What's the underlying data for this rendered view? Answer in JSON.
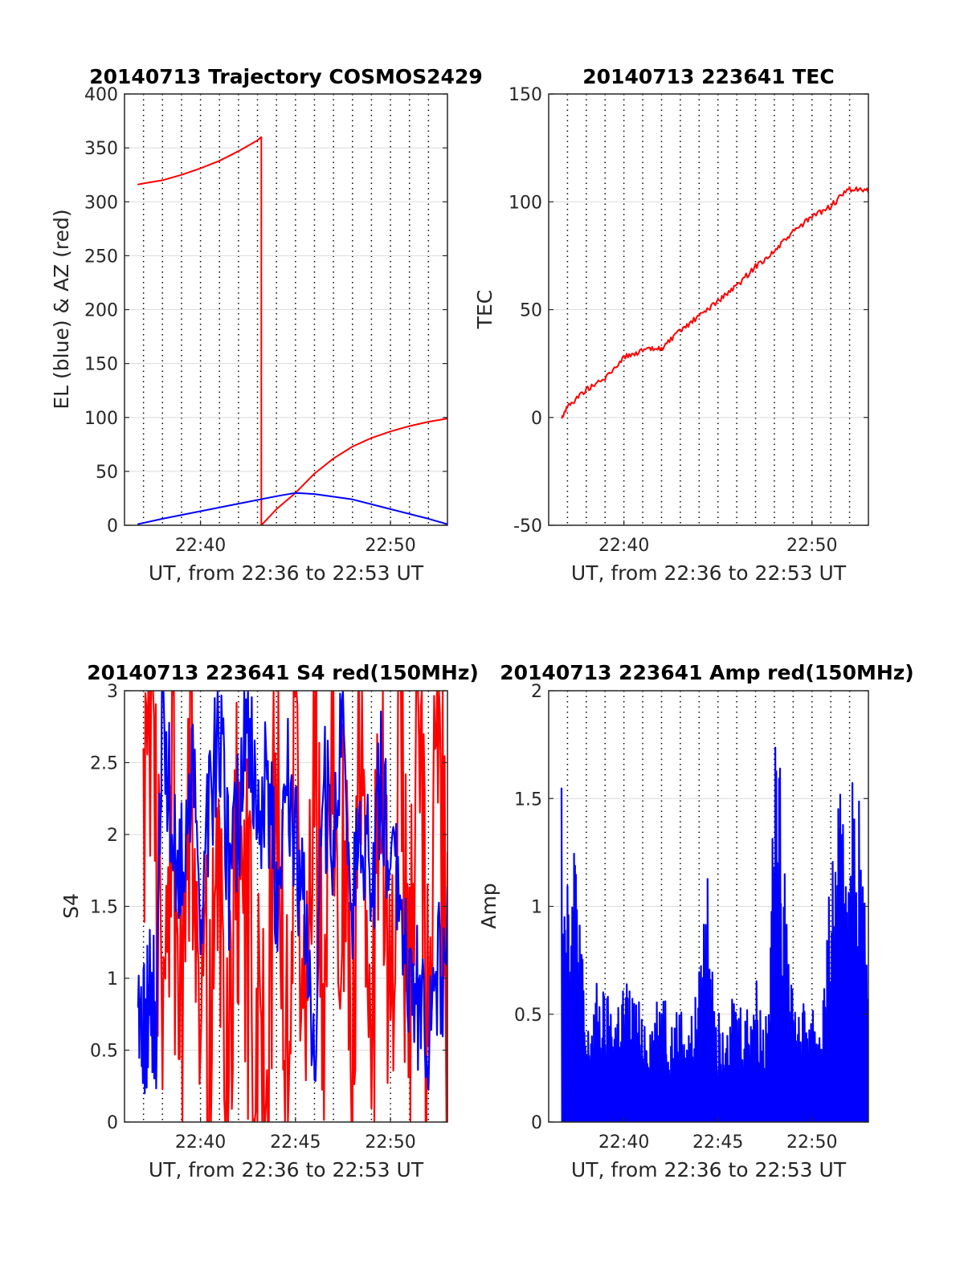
{
  "chart_data": [
    {
      "type": "line",
      "title": "20140713 Trajectory COSMOS2429",
      "xlabel": "UT, from 22:36 to 22:53 UT",
      "ylabel": "EL (blue) & AZ (red)",
      "xlim": [
        "22:36",
        "22:53"
      ],
      "ylim": [
        0,
        400
      ],
      "yticks": [
        0,
        50,
        100,
        150,
        200,
        250,
        300,
        350,
        400
      ],
      "xticks": [
        "22:40",
        "22:50"
      ],
      "grid": true,
      "series": [
        {
          "color": "#ff0000",
          "x": [
            "22:36:41",
            "22:37",
            "22:38",
            "22:39",
            "22:40",
            "22:41",
            "22:42",
            "22:43",
            "22:43:12",
            "22:43:12",
            "22:44",
            "22:45",
            "22:46",
            "22:47",
            "22:48",
            "22:49",
            "22:50",
            "22:51",
            "22:52",
            "22:53"
          ],
          "values": [
            316,
            317,
            320,
            325,
            331,
            338,
            347,
            357,
            360,
            0,
            15,
            30,
            48,
            62,
            73,
            81,
            87,
            92,
            96,
            99
          ]
        },
        {
          "color": "#0000ff",
          "x": [
            "22:36:41",
            "22:38",
            "22:40",
            "22:42",
            "22:44",
            "22:45",
            "22:46",
            "22:48",
            "22:50",
            "22:52",
            "22:53"
          ],
          "values": [
            1,
            6,
            13,
            20,
            27,
            30,
            29,
            24,
            15,
            6,
            1
          ]
        }
      ]
    },
    {
      "type": "line",
      "title": "20140713 223641 TEC",
      "xlabel": "UT, from 22:36 to 22:53 UT",
      "ylabel": "TEC",
      "xlim": [
        "22:36",
        "22:53"
      ],
      "ylim": [
        -50,
        150
      ],
      "yticks": [
        -50,
        0,
        50,
        100,
        150
      ],
      "xticks": [
        "22:40",
        "22:50"
      ],
      "grid": true,
      "series": [
        {
          "color": "#ff0000",
          "x": [
            "22:36:41",
            "22:37",
            "22:38",
            "22:39",
            "22:40",
            "22:41",
            "22:42",
            "22:43",
            "22:44",
            "22:45",
            "22:46",
            "22:47",
            "22:48",
            "22:49",
            "22:50",
            "22:51",
            "22:52",
            "22:53"
          ],
          "values": [
            0,
            5,
            13,
            18,
            28,
            31,
            32,
            40,
            47,
            54,
            61,
            70,
            77,
            86,
            93,
            98,
            106,
            105
          ]
        }
      ]
    },
    {
      "type": "line",
      "title": "20140713 223641 S4 red(150MHz)",
      "xlabel": "UT, from 22:36 to 22:53 UT",
      "ylabel": "S4",
      "xlim": [
        "22:36",
        "22:53"
      ],
      "ylim": [
        0,
        3
      ],
      "yticks": [
        0,
        0.5,
        1,
        1.5,
        2,
        2.5,
        3
      ],
      "xticks": [
        "22:40",
        "22:45",
        "22:50"
      ],
      "grid": true,
      "series": [
        {
          "color": "#ff0000",
          "x": [
            "22:37",
            "22:37:30",
            "22:38",
            "22:38:30",
            "22:39",
            "22:39:30",
            "22:40",
            "22:40:30",
            "22:41",
            "22:41:30",
            "22:42",
            "22:42:30",
            "22:43",
            "22:43:30",
            "22:44",
            "22:44:30",
            "22:45",
            "22:45:30",
            "22:46",
            "22:46:30",
            "22:47",
            "22:47:30",
            "22:48",
            "22:48:30",
            "22:49",
            "22:49:30",
            "22:50",
            "22:50:30",
            "22:51",
            "22:51:30",
            "22:52",
            "22:52:30",
            "22:53"
          ],
          "values": [
            2.6,
            3,
            0.3,
            2.5,
            0.2,
            2.3,
            1.5,
            0.3,
            1.5,
            0.2,
            2.1,
            1.3,
            0.3,
            0.1,
            2.9,
            0.2,
            3,
            0.3,
            3,
            0.2,
            3,
            1.6,
            0.3,
            3,
            0.4,
            3,
            0.2,
            3,
            0.5,
            3,
            0.1,
            3,
            0.6
          ]
        },
        {
          "color": "#0000ff",
          "x": [
            "22:36:41",
            "22:37",
            "22:37:20",
            "22:37:40",
            "22:38",
            "22:38:30",
            "22:39",
            "22:39:30",
            "22:40",
            "22:40:30",
            "22:41",
            "22:41:30",
            "22:42",
            "22:42:30",
            "22:43",
            "22:43:30",
            "22:44",
            "22:44:30",
            "22:45",
            "22:45:30",
            "22:46",
            "22:46:30",
            "22:47",
            "22:47:30",
            "22:48",
            "22:48:30",
            "22:49",
            "22:49:30",
            "22:50",
            "22:50:30",
            "22:51",
            "22:51:30",
            "22:52",
            "22:52:30",
            "22:53"
          ],
          "values": [
            0.8,
            0.6,
            0.9,
            0.7,
            3,
            2.0,
            1.8,
            2.5,
            1.6,
            2.2,
            2.8,
            1.7,
            2.1,
            2.9,
            1.9,
            2.4,
            1.6,
            2.6,
            2.0,
            1.4,
            0.6,
            2.3,
            1.9,
            2.7,
            1.5,
            2.1,
            1.6,
            2.5,
            1.8,
            1.6,
            0.7,
            0.9,
            0.6,
            1.0,
            1.2
          ]
        }
      ]
    },
    {
      "type": "line",
      "title": "20140713 223641 Amp red(150MHz)",
      "xlabel": "UT, from 22:36 to 22:53 UT",
      "ylabel": "Amp",
      "xlim": [
        "22:36",
        "22:53"
      ],
      "ylim": [
        0,
        2
      ],
      "yticks": [
        0,
        0.5,
        1,
        1.5,
        2
      ],
      "xticks": [
        "22:40",
        "22:45",
        "22:50"
      ],
      "grid": true,
      "series": [
        {
          "color": "#0000ff",
          "x": [
            "22:36:41",
            "22:37",
            "22:37:30",
            "22:38",
            "22:38:30",
            "22:39",
            "22:39:30",
            "22:40",
            "22:40:30",
            "22:41",
            "22:41:30",
            "22:42",
            "22:42:30",
            "22:43",
            "22:43:30",
            "22:44",
            "22:44:30",
            "22:45",
            "22:45:30",
            "22:46",
            "22:46:30",
            "22:47",
            "22:47:30",
            "22:48",
            "22:48:30",
            "22:49",
            "22:49:30",
            "22:50",
            "22:50:30",
            "22:51",
            "22:51:30",
            "22:52",
            "22:52:30",
            "22:53"
          ],
          "values": [
            1.55,
            1.3,
            1.35,
            0.4,
            0.65,
            0.6,
            0.55,
            0.7,
            0.6,
            0.55,
            0.5,
            0.7,
            0.5,
            0.55,
            0.45,
            0.7,
            1.3,
            0.5,
            0.65,
            0.6,
            0.55,
            0.7,
            0.45,
            1.78,
            1.55,
            0.6,
            0.55,
            0.6,
            0.5,
            1.2,
            1.55,
            1.68,
            1.55,
            0.68
          ]
        }
      ]
    }
  ]
}
